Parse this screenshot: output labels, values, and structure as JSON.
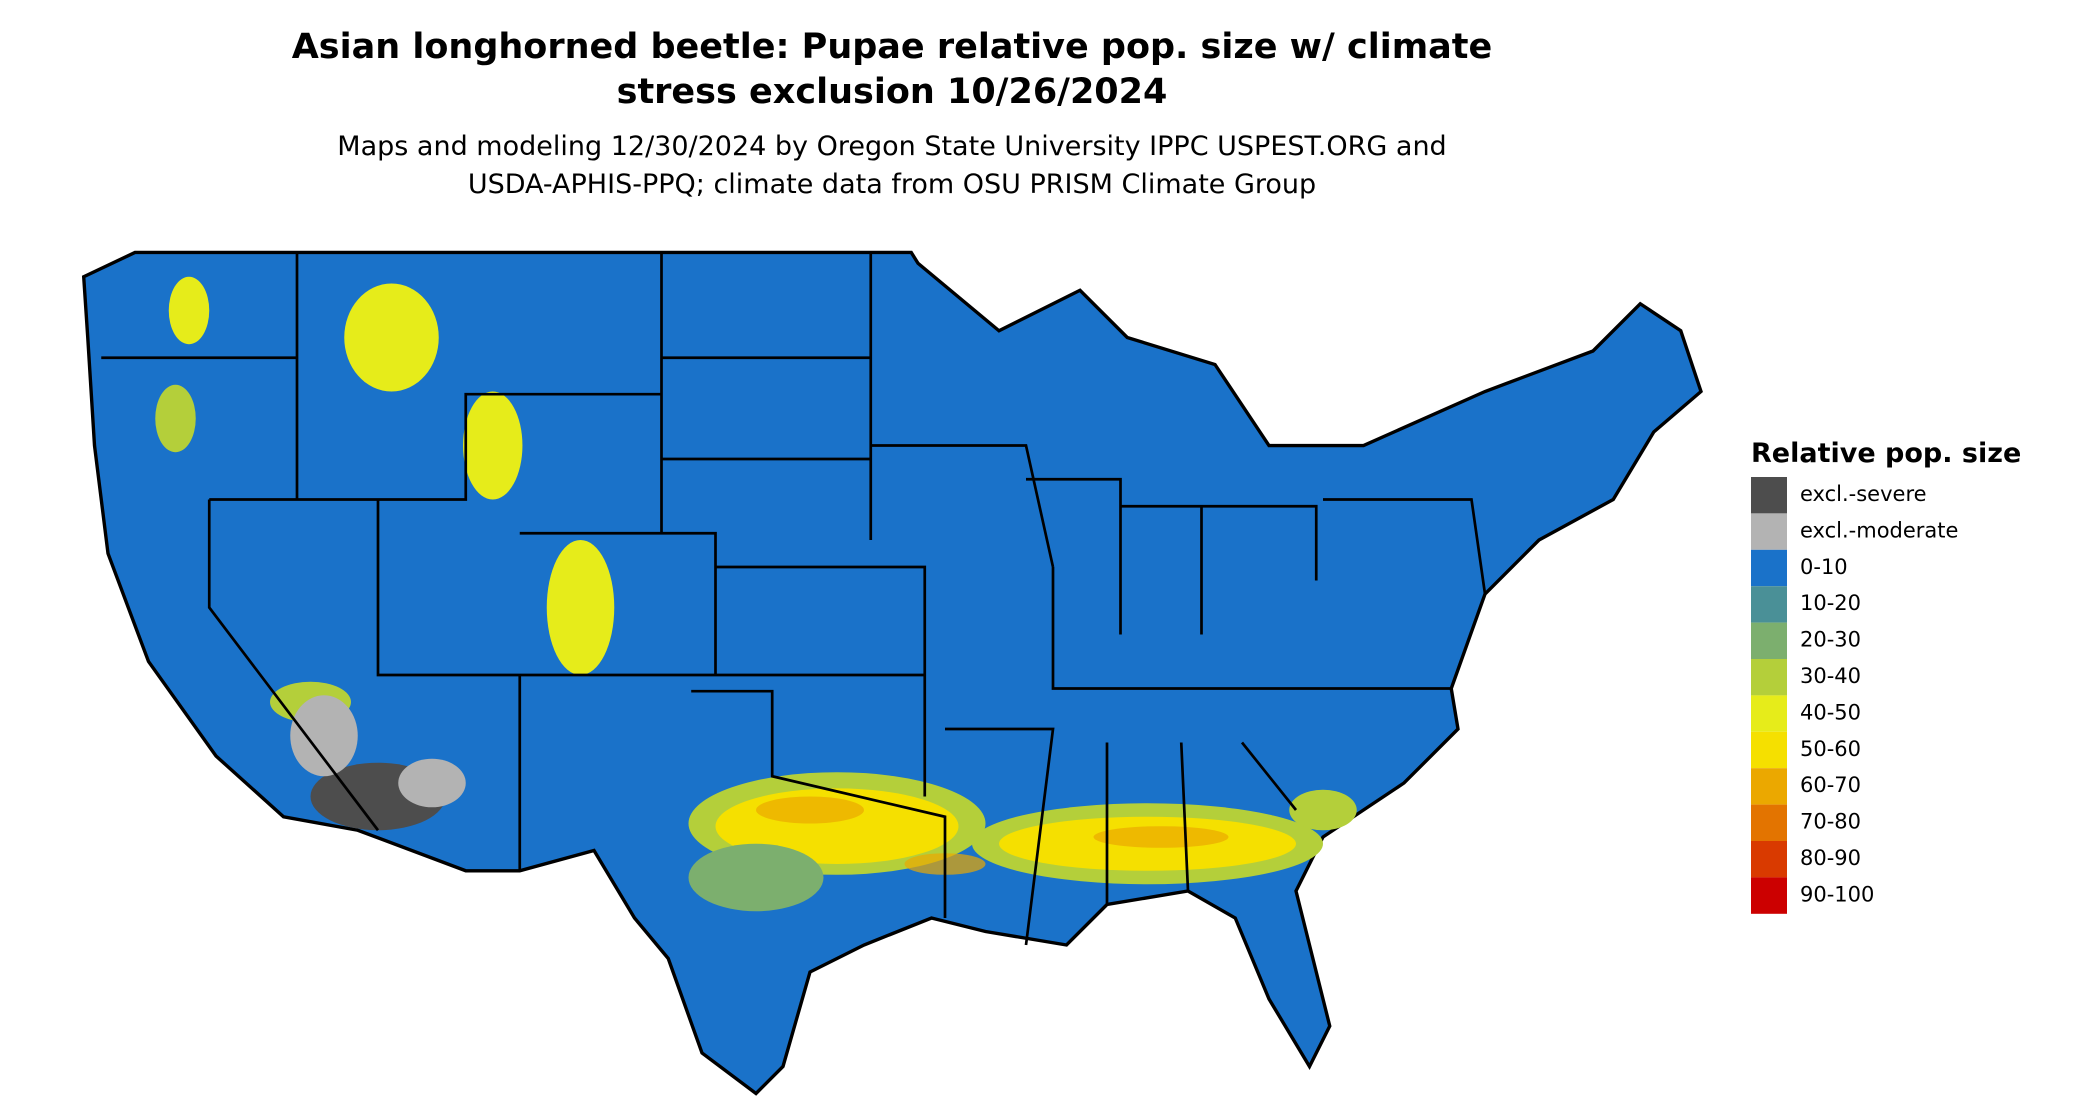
{
  "header": {
    "title": [
      "Asian longhorned beetle: Pupae relative pop. size w/ climate",
      "stress exclusion 10/26/2024"
    ],
    "subtitle": [
      "Maps and modeling 12/30/2024 by Oregon State University IPPC USPEST.ORG and",
      "USDA-APHIS-PPQ; climate data from OSU PRISM Climate Group"
    ]
  },
  "legend": {
    "title": "Relative pop. size",
    "items": [
      {
        "label": "excl.-severe",
        "color": "#4d4d4d"
      },
      {
        "label": "excl.-moderate",
        "color": "#b3b3b3"
      },
      {
        "label": "0-10",
        "color": "#1a72c9"
      },
      {
        "label": "10-20",
        "color": "#4a9097"
      },
      {
        "label": "20-30",
        "color": "#7caf6e"
      },
      {
        "label": "30-40",
        "color": "#b4cf3a"
      },
      {
        "label": "40-50",
        "color": "#e6ec1a"
      },
      {
        "label": "50-60",
        "color": "#f5e000"
      },
      {
        "label": "60-70",
        "color": "#eba800"
      },
      {
        "label": "70-80",
        "color": "#e37400"
      },
      {
        "label": "80-90",
        "color": "#d93a00"
      },
      {
        "label": "90-100",
        "color": "#cc0000"
      }
    ]
  }
}
